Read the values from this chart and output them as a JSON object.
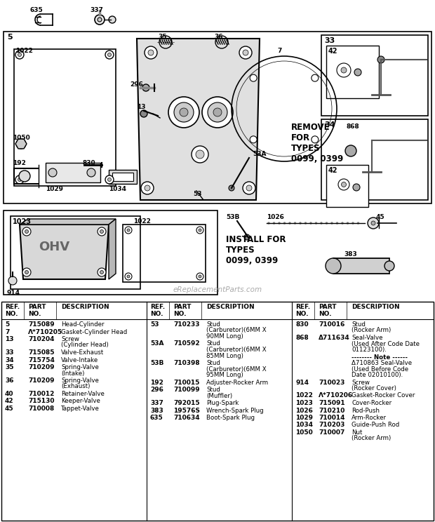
{
  "bg_color": "#ffffff",
  "watermark": "eReplacementParts.com",
  "col1_data": [
    [
      "5",
      "715089",
      "Head-Cylinder"
    ],
    [
      "7",
      "Λ*710205",
      "Gasket-Cylinder Head"
    ],
    [
      "13",
      "710204",
      "Screw\n(Cylinder Head)"
    ],
    [
      "33",
      "715085",
      "Valve-Exhaust"
    ],
    [
      "34",
      "715754",
      "Valve-Intake"
    ],
    [
      "35",
      "710209",
      "Spring-Valve\n(Intake)"
    ],
    [
      "36",
      "710209",
      "Spring-Valve\n(Exhaust)"
    ],
    [
      "40",
      "710012",
      "Retainer-Valve"
    ],
    [
      "42",
      "715130",
      "Keeper-Valve"
    ],
    [
      "45",
      "710008",
      "Tappet-Valve"
    ]
  ],
  "col2_data": [
    [
      "53",
      "710233",
      "Stud\n(Carburetor)(6MM X\n90MM Long)"
    ],
    [
      "53A",
      "710592",
      "Stud\n(Carburetor)(6MM X\n85MM Long)"
    ],
    [
      "53B",
      "710398",
      "Stud\n(Carburetor)(6MM X\n95MM Long)"
    ],
    [
      "192",
      "710015",
      "Adjuster-Rocker Arm"
    ],
    [
      "296",
      "710099",
      "Stud\n(Muffler)"
    ],
    [
      "337",
      "792015",
      "Plug-Spark"
    ],
    [
      "383",
      "19576S",
      "Wrench-Spark Plug"
    ],
    [
      "635",
      "710634",
      "Boot-Spark Plug"
    ]
  ],
  "col3_data": [
    [
      "830",
      "710016",
      "Stud\n(Rocker Arm)"
    ],
    [
      "868",
      "Δ711634",
      "Seal-Valve\n(Used After Code Date\n01123100)."
    ],
    [
      "",
      "",
      "-------- Note ------\nΔ710863 Seal-Valve\n(Used Before Code\nDate 02010100)."
    ],
    [
      "914",
      "710023",
      "Screw\n(Rocker Cover)"
    ],
    [
      "1022",
      "Λ*710206",
      "Gasket-Rocker Cover"
    ],
    [
      "1023",
      "715091",
      "Cover-Rocker"
    ],
    [
      "1026",
      "710210",
      "Rod-Push"
    ],
    [
      "1029",
      "710014",
      "Arm-Rocker"
    ],
    [
      "1034",
      "710203",
      "Guide-Push Rod"
    ],
    [
      "1050",
      "710007",
      "Nut\n(Rocker Arm)"
    ]
  ]
}
